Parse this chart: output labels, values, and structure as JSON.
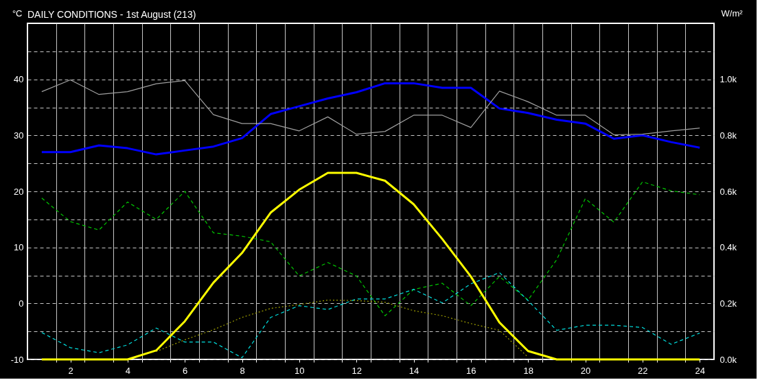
{
  "chart_data": {
    "type": "line",
    "title": "DAILY CONDITIONS - 1st August (213)",
    "ylabel": "°C",
    "y2label": "W/m²",
    "x": [
      1,
      2,
      3,
      4,
      5,
      6,
      7,
      8,
      9,
      10,
      11,
      12,
      13,
      14,
      15,
      16,
      17,
      18,
      19,
      20,
      21,
      22,
      23,
      24
    ],
    "xlim": [
      0.5,
      24.5
    ],
    "xticks": [
      {
        "value": 1.5,
        "label": null
      },
      2,
      {
        "value": 2.5,
        "label": null
      },
      {
        "value": 3.5,
        "label": null
      },
      4,
      {
        "value": 4.5,
        "label": null
      },
      {
        "value": 5.5,
        "label": null
      },
      6,
      {
        "value": 6.5,
        "label": null
      },
      {
        "value": 7.5,
        "label": null
      },
      8,
      {
        "value": 8.5,
        "label": null
      },
      {
        "value": 9.5,
        "label": null
      },
      10,
      {
        "value": 10.5,
        "label": null
      },
      {
        "value": 11.5,
        "label": null
      },
      12,
      {
        "value": 12.5,
        "label": null
      },
      {
        "value": 13.5,
        "label": null
      },
      14,
      {
        "value": 14.5,
        "label": null
      },
      {
        "value": 15.5,
        "label": null
      },
      16,
      {
        "value": 16.5,
        "label": null
      },
      {
        "value": 17.5,
        "label": null
      },
      18,
      {
        "value": 18.5,
        "label": null
      },
      {
        "value": 19.5,
        "label": null
      },
      20,
      {
        "value": 20.5,
        "label": null
      },
      {
        "value": 21.5,
        "label": null
      },
      22,
      {
        "value": 22.5,
        "label": null
      },
      {
        "value": 23.5,
        "label": null
      },
      24
    ],
    "ylim": [
      -10,
      50
    ],
    "yticks": [
      -10,
      {
        "value": -5,
        "label": null
      },
      0,
      {
        "value": 5,
        "label": null
      },
      10,
      {
        "value": 15,
        "label": null
      },
      20,
      {
        "value": 25,
        "label": null
      },
      30,
      {
        "value": 35,
        "label": null
      },
      40,
      {
        "value": 45,
        "label": null
      }
    ],
    "y2lim": [
      0,
      1200
    ],
    "y2ticks": [
      {
        "value": 0,
        "label": "0.0k"
      },
      {
        "value": 200,
        "label": "0.2k"
      },
      {
        "value": 400,
        "label": "0.4k"
      },
      {
        "value": 600,
        "label": "0.6k"
      },
      {
        "value": 800,
        "label": "0.8k"
      },
      {
        "value": 1000,
        "label": "1.0k"
      }
    ],
    "grid": true,
    "series": [
      {
        "color": "#0000ff",
        "line_style": "solid",
        "values": [
          27,
          27,
          28.2,
          27.7,
          26.6,
          27.3,
          28,
          29.5,
          33.8,
          35.2,
          36.6,
          37.7,
          39.3,
          39.3,
          38.5,
          38.5,
          34.8,
          34,
          32.8,
          32.1,
          29.4,
          30,
          28.8,
          27.8
        ]
      },
      {
        "color": "#a0a0a0",
        "line_style": "solid",
        "values": [
          37.8,
          39.9,
          37.3,
          37.8,
          39.2,
          39.8,
          33.7,
          32.1,
          32.1,
          30.8,
          33.3,
          30.2,
          30.7,
          33.6,
          33.6,
          31.4,
          37.9,
          36,
          33.6,
          33.6,
          30.1,
          30.2,
          30.8,
          31.3
        ]
      },
      {
        "color": "#00c800",
        "line_style": "dashed",
        "values": [
          18.8,
          14.6,
          13.1,
          18.1,
          15,
          20,
          12.6,
          12,
          11,
          4.9,
          7.3,
          4.9,
          -2.2,
          2.5,
          3.6,
          -0.4,
          4.8,
          0.6,
          7.8,
          18.7,
          14.5,
          21.7,
          20.1,
          19.4
        ]
      },
      {
        "color": "#00e0e0",
        "line_style": "dashed",
        "values": [
          -5.2,
          -7.9,
          -8.8,
          -7.4,
          -4.4,
          -6.9,
          -6.9,
          -9.7,
          -2.5,
          -0.4,
          -1.1,
          0.8,
          0.8,
          2.5,
          0.1,
          3.5,
          5.5,
          0.5,
          -4.8,
          -3.9,
          -3.9,
          -4.3,
          -7.3,
          -5.3
        ]
      },
      {
        "color": "#a0a000",
        "line_style": "dotted",
        "axis": "y2",
        "values": [
          null,
          null,
          null,
          null,
          28,
          70,
          106,
          150,
          182,
          196,
          212,
          210,
          204,
          174,
          156,
          128,
          104,
          8,
          null,
          null,
          null,
          null,
          null,
          null
        ]
      },
      {
        "color": "#ffff00",
        "line_style": "solid",
        "axis": "y2",
        "values": [
          0,
          0,
          0,
          0,
          32,
          136,
          274,
          380,
          524,
          606,
          666,
          666,
          638,
          554,
          430,
          296,
          132,
          30,
          0,
          0,
          0,
          0,
          0,
          0
        ]
      }
    ]
  }
}
